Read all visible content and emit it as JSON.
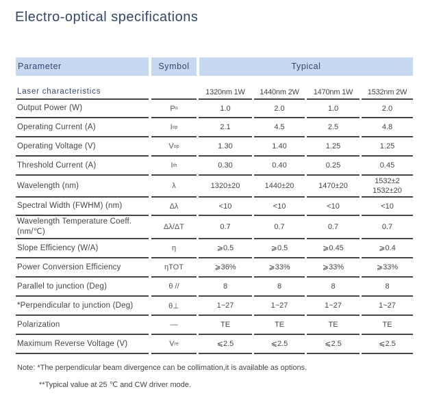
{
  "title": "Electro-optical specifications",
  "header": {
    "parameter": "Parameter",
    "symbol": "Symbol",
    "typical": "Typical"
  },
  "section": {
    "label": "Laser characteristics",
    "models": [
      "1320nm 1W",
      "1440nm 2W",
      "1470nm 1W",
      "1532nm 2W"
    ]
  },
  "rows": [
    {
      "param": "Output Power  (W)",
      "sym_base": "P",
      "sym_sub": "o",
      "values": [
        "1.0",
        "2.0",
        "1.0",
        "2.0"
      ]
    },
    {
      "param": "Operating Current   (A)",
      "sym_base": "I",
      "sym_sub": "op",
      "values": [
        "2.1",
        "4.5",
        "2.5",
        "4.8"
      ]
    },
    {
      "param": "Operating Voltage   (V)",
      "sym_base": "V",
      "sym_sub": "op",
      "values": [
        "1.30",
        "1.40",
        "1.25",
        "1.25"
      ]
    },
    {
      "param": "Threshold Current   (A)",
      "sym_base": "I",
      "sym_sub": "th",
      "values": [
        "0.30",
        "0.40",
        "0.25",
        "0.45"
      ]
    },
    {
      "param": "Wavelength   (nm)",
      "sym_base": "λ",
      "sym_sub": "",
      "values": [
        "1320±20",
        "1440±20",
        "1470±20",
        "1532±2\n1532±20"
      ]
    },
    {
      "param": "Spectral Width (FWHM) (nm)",
      "sym_base": "Δλ",
      "sym_sub": "",
      "values": [
        "<10",
        "<10",
        "<10",
        "<10"
      ]
    },
    {
      "param": "Wavelength Temperature Coeff. (nm/℃)",
      "sym_base": "Δλ/ΔT",
      "sym_sub": "",
      "values": [
        "0.7",
        "0.7",
        "0.7",
        "0.7"
      ]
    },
    {
      "param": "Slope Efficiency   (W/A)",
      "sym_base": "η",
      "sym_sub": "",
      "values": [
        "⩾0.5",
        "⩾0.5",
        "⩾0.45",
        "⩾0.4"
      ]
    },
    {
      "param": "Power Conversion Efficiency",
      "sym_base": "ηTOT",
      "sym_sub": "",
      "values": [
        "⩾36%",
        "⩾33%",
        "⩾33%",
        "⩾33%"
      ]
    },
    {
      "param": "Parallel to junction   (Deg)",
      "sym_base": "θ //",
      "sym_sub": "",
      "values": [
        "8",
        "8",
        "8",
        "8"
      ]
    },
    {
      "param": "*Perpendicular to junction   (Deg)",
      "sym_base": "θ⊥",
      "sym_sub": "",
      "values": [
        "1~27",
        "1~27",
        "1~27",
        "1~27"
      ]
    },
    {
      "param": "Polarization",
      "sym_base": "—",
      "sym_sub": "",
      "values": [
        "TE",
        "TE",
        "TE",
        "TE"
      ]
    },
    {
      "param": "Maximum Reverse Voltage   (V)",
      "sym_base": "V",
      "sym_sub": "re",
      "values": [
        "⩽2.5",
        "⩽2.5",
        "⩽2.5",
        "⩽2.5"
      ]
    }
  ],
  "notes": {
    "line1": "Note: *The perpendicular beam divergence can be collimation,it is available as options.",
    "line2": "**Typical value at 25 ℃ and CW driver mode."
  }
}
